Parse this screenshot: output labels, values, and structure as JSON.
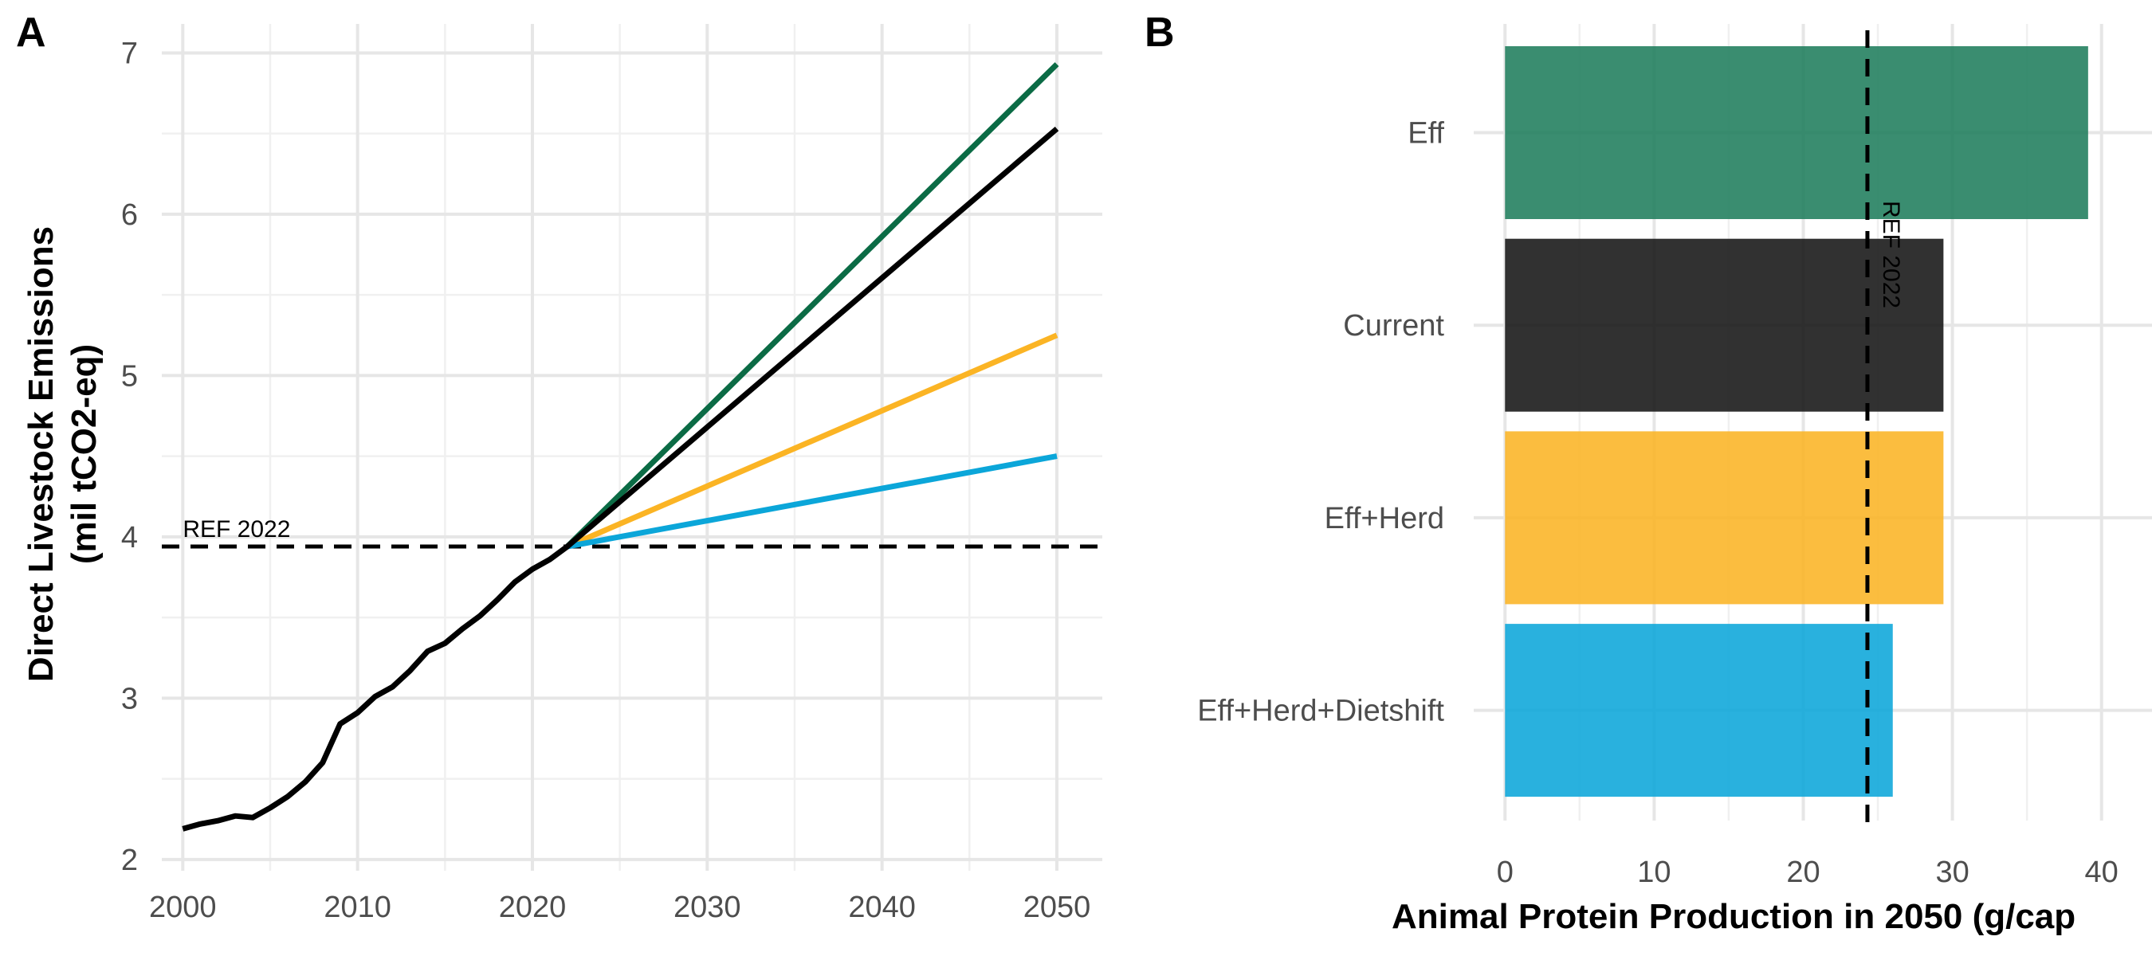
{
  "panels": {
    "a": {
      "letter": "A",
      "ylabel_line1": "Direct Livestock Emissions",
      "ylabel_line2": "(mil tCO2-eq)",
      "ref_label": "REF 2022"
    },
    "b": {
      "letter": "B",
      "xlabel": "Animal Protein Production in 2050 (g/cap",
      "ref_label": "REF 2022"
    }
  },
  "chart_data": [
    {
      "type": "line",
      "title": "",
      "xlabel": "",
      "ylabel": "Direct Livestock Emissions (mil tCO2-eq)",
      "xlim": [
        1998.8,
        2052.6
      ],
      "ylim": [
        1.93,
        7.18
      ],
      "x_ticks": [
        2000,
        2010,
        2020,
        2030,
        2040,
        2050
      ],
      "y_ticks": [
        2,
        3,
        4,
        5,
        6,
        7
      ],
      "grid": true,
      "legend": "none",
      "reference_line": {
        "orientation": "horizontal",
        "value": 3.94,
        "label": "REF 2022",
        "style": "dashed",
        "color": "#000000"
      },
      "series": [
        {
          "color": "#000000",
          "points": [
            [
              2000,
              2.19
            ],
            [
              2001,
              2.22
            ],
            [
              2002,
              2.24
            ],
            [
              2003,
              2.27
            ],
            [
              2004,
              2.26
            ],
            [
              2005,
              2.32
            ],
            [
              2006,
              2.39
            ],
            [
              2007,
              2.48
            ],
            [
              2008,
              2.6
            ],
            [
              2009,
              2.84
            ],
            [
              2010,
              2.91
            ],
            [
              2011,
              3.01
            ],
            [
              2012,
              3.07
            ],
            [
              2013,
              3.17
            ],
            [
              2014,
              3.29
            ],
            [
              2015,
              3.34
            ],
            [
              2016,
              3.43
            ],
            [
              2017,
              3.51
            ],
            [
              2018,
              3.61
            ],
            [
              2019,
              3.72
            ],
            [
              2020,
              3.8
            ],
            [
              2021,
              3.86
            ],
            [
              2022,
              3.94
            ],
            [
              2050,
              6.53
            ]
          ]
        },
        {
          "color": "#0b6b45",
          "points": [
            [
              2022,
              3.94
            ],
            [
              2050,
              6.93
            ]
          ]
        },
        {
          "color": "#fbb424",
          "points": [
            [
              2022,
              3.94
            ],
            [
              2050,
              5.25
            ]
          ]
        },
        {
          "color": "#0ba6d9",
          "points": [
            [
              2022,
              3.94
            ],
            [
              2050,
              4.5
            ]
          ]
        }
      ]
    },
    {
      "type": "bar",
      "orientation": "horizontal",
      "title": "",
      "xlabel": "Animal Protein Production in 2050 (g/cap",
      "ylabel": "",
      "xlim": [
        -2.1,
        41.0
      ],
      "x_ticks": [
        0,
        10,
        20,
        30,
        40
      ],
      "grid": true,
      "legend": "none",
      "categories": [
        "Eff",
        "Current",
        "Eff+Herd",
        "Eff+Herd+Dietshift"
      ],
      "values": [
        39.1,
        29.4,
        29.4,
        26.0
      ],
      "colors": [
        "#1f7d5c",
        "#141414",
        "#fbb424",
        "#0ba6d9"
      ],
      "reference_line": {
        "orientation": "vertical",
        "value": 24.3,
        "label": "REF 2022",
        "style": "dashed",
        "color": "#000000"
      }
    }
  ]
}
